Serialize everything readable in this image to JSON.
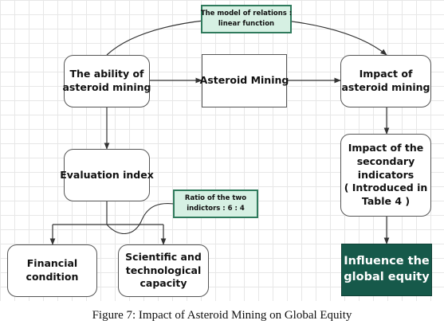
{
  "diagram": {
    "notes": {
      "relations": [
        "The model of relations :",
        "linear function"
      ],
      "ratio": [
        "Ratio of the two",
        "indictors : 6 : 4"
      ]
    },
    "nodes": {
      "ability": [
        "The ability of",
        "asteroid mining"
      ],
      "mining": [
        "Asteroid Mining"
      ],
      "impact": [
        "Impact of",
        "asteroid mining"
      ],
      "secondary": [
        "Impact of the",
        "secondary",
        "indicators",
        "( Introduced in",
        "Table 4 )"
      ],
      "evaluation": [
        "Evaluation index"
      ],
      "financial": [
        "Financial",
        "condition"
      ],
      "scientific": [
        "Scientific and",
        "technological",
        "capacity"
      ],
      "equity": [
        "Influence the",
        "global equity"
      ]
    },
    "colors": {
      "note_fill": "#d6f0e3",
      "note_border": "#2f7a5c",
      "equity_fill": "#16594a"
    }
  },
  "caption": "Figure 7: Impact of Asteroid Mining on Global Equity"
}
